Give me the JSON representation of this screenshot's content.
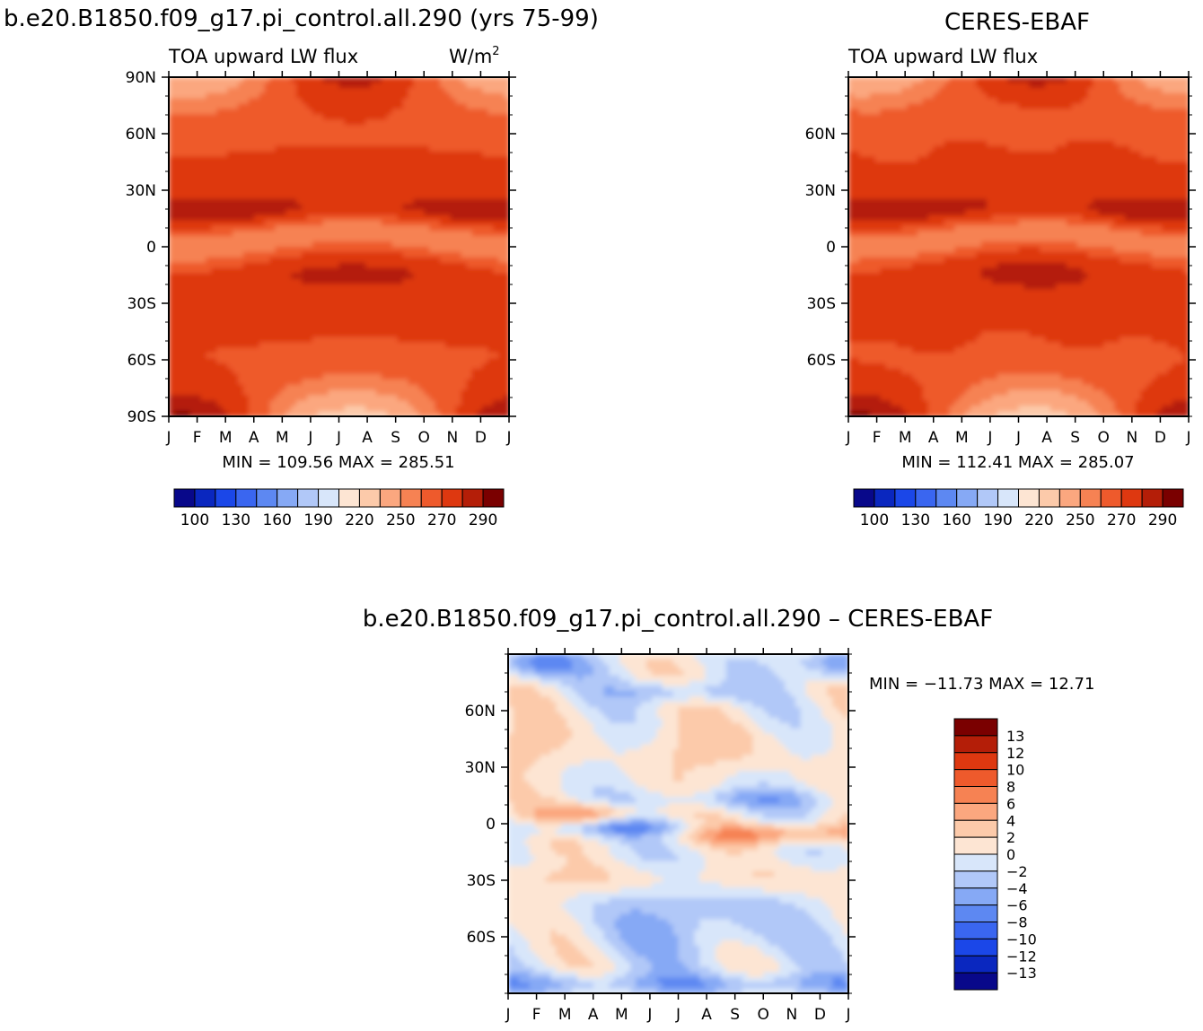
{
  "chart_data": [
    {
      "type": "heatmap",
      "title": "b.e20.B1850.f09_g17.pi_control.all.290 (yrs 75-99)",
      "subtitle_left": "TOA upward LW flux",
      "units": "W/m",
      "units_superscript": "2",
      "x_tick_labels": [
        "J",
        "F",
        "M",
        "A",
        "M",
        "J",
        "J",
        "A",
        "S",
        "O",
        "N",
        "D",
        "J"
      ],
      "y_tick_labels": [
        "90N",
        "60N",
        "30N",
        "0",
        "30S",
        "60S",
        "90S"
      ],
      "y_range": [
        90,
        -90
      ],
      "stats": "MIN = 109.56  MAX = 285.51",
      "min": 109.56,
      "max": 285.51,
      "colorbar_labels": [
        "100",
        "130",
        "160",
        "190",
        "220",
        "250",
        "270",
        "290"
      ],
      "colorbar_levels": [
        100,
        115,
        130,
        145,
        160,
        175,
        190,
        205,
        220,
        235,
        250,
        260,
        270,
        280,
        290
      ]
    },
    {
      "type": "heatmap",
      "title": "CERES-EBAF",
      "subtitle_left": "TOA upward LW flux",
      "x_tick_labels": [
        "J",
        "F",
        "M",
        "A",
        "M",
        "J",
        "J",
        "A",
        "S",
        "O",
        "N",
        "D",
        "J"
      ],
      "y_tick_labels": [
        "60N",
        "30N",
        "0",
        "30S",
        "60S"
      ],
      "y_range": [
        90,
        -90
      ],
      "stats": "MIN = 112.41  MAX = 285.07",
      "min": 112.41,
      "max": 285.07,
      "colorbar_labels": [
        "100",
        "130",
        "160",
        "190",
        "220",
        "250",
        "270",
        "290"
      ],
      "colorbar_levels": [
        100,
        115,
        130,
        145,
        160,
        175,
        190,
        205,
        220,
        235,
        250,
        260,
        270,
        280,
        290
      ]
    },
    {
      "type": "heatmap",
      "title": "b.e20.B1850.f09_g17.pi_control.all.290 – CERES-EBAF",
      "x_tick_labels": [
        "J",
        "F",
        "M",
        "A",
        "M",
        "J",
        "J",
        "A",
        "S",
        "O",
        "N",
        "D",
        "J"
      ],
      "y_tick_labels": [
        "60N",
        "30N",
        "0",
        "30S",
        "60S"
      ],
      "y_range": [
        90,
        -90
      ],
      "stats": "MIN = −11.73 MAX =   12.71",
      "min": -11.73,
      "max": 12.71,
      "colorbar_labels": [
        "13",
        "12",
        "10",
        "8",
        "6",
        "4",
        "2",
        "0",
        "−2",
        "−4",
        "−6",
        "−8",
        "−10",
        "−12",
        "−13"
      ],
      "colorbar_levels": [
        -13,
        -12,
        -10,
        -8,
        -6,
        -4,
        -2,
        0,
        2,
        4,
        6,
        8,
        10,
        12,
        13
      ]
    }
  ],
  "palette": [
    "#08088a",
    "#0a27bf",
    "#1b47e8",
    "#3a66f0",
    "#5d88f2",
    "#86a9f5",
    "#b1c8f8",
    "#d8e6fa",
    "#fde5d3",
    "#fccaaa",
    "#fba77f",
    "#f68253",
    "#ee5a2c",
    "#de3810",
    "#b41e08",
    "#7a0000"
  ]
}
